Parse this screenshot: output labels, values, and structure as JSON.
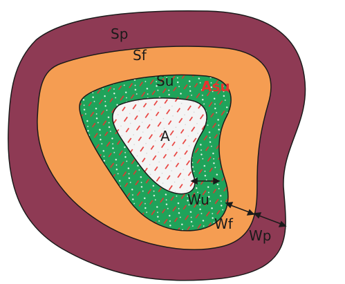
{
  "colors": {
    "outer_zone": "#8e3a54",
    "middle_zone": "#f59d52",
    "inner_zone": "#1fa35a",
    "core_zone": "#f4f4f4",
    "hatch": "#e8332f",
    "outline": "#1a1a1a",
    "asu_label": "#e8332f"
  },
  "labels": {
    "sp": "Sp",
    "sf": "Sf",
    "su": "Su",
    "asu": "Asu",
    "a": "A",
    "wu": "Wu",
    "wf": "Wf",
    "wp": "Wp"
  }
}
